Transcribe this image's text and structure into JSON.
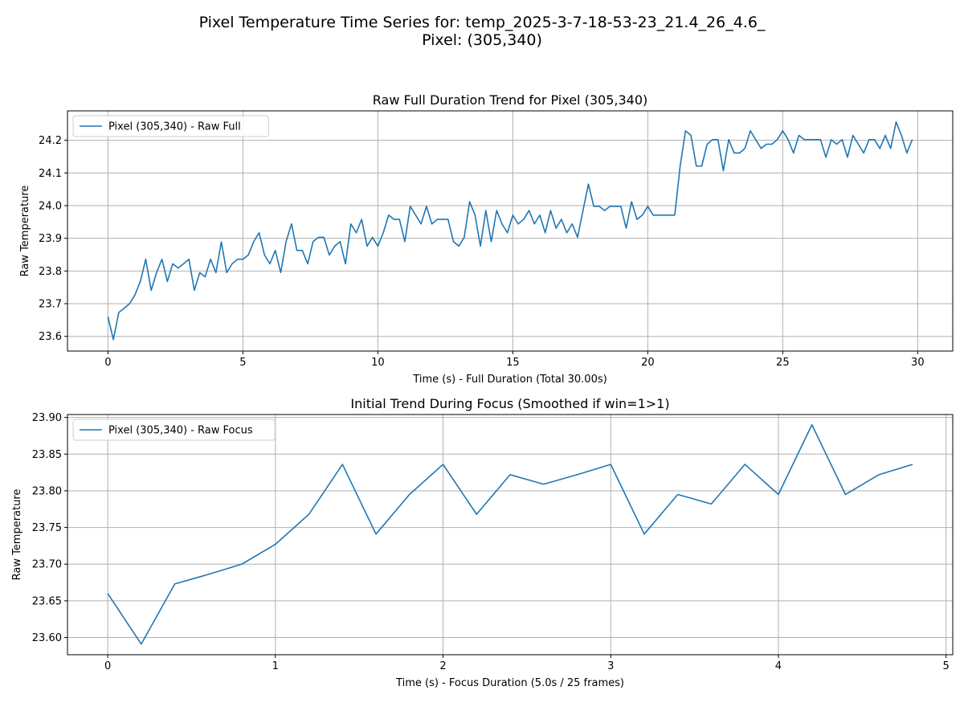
{
  "figure": {
    "suptitle_line1": "Pixel Temperature Time Series for: temp_2025-3-7-18-53-23_21.4_26_4.6_",
    "suptitle_line2": "Pixel: (305,340)"
  },
  "colors": {
    "series": "#1f77b4",
    "grid": "#b0b0b0"
  },
  "chart_data": [
    {
      "type": "line",
      "title": "Raw Full Duration Trend for Pixel (305,340)",
      "xlabel": "Time (s) - Full Duration (Total 30.00s)",
      "ylabel": "Raw Temperature",
      "xlim": [
        -1.5,
        31.3
      ],
      "ylim": [
        23.555,
        24.29
      ],
      "xticks": [
        0,
        5,
        10,
        15,
        20,
        25,
        30
      ],
      "xtick_labels": [
        "0",
        "5",
        "10",
        "15",
        "20",
        "25",
        "30"
      ],
      "yticks": [
        23.6,
        23.7,
        23.8,
        23.9,
        24.0,
        24.1,
        24.2
      ],
      "ytick_labels": [
        "23.6",
        "23.7",
        "23.8",
        "23.9",
        "24.0",
        "24.1",
        "24.2"
      ],
      "grid": true,
      "legend_position": "upper-left",
      "series": [
        {
          "name": "Pixel (305,340) - Raw Full",
          "x": [
            0.0,
            0.2,
            0.4,
            0.6,
            0.8,
            1.0,
            1.2,
            1.4,
            1.6,
            1.8,
            2.0,
            2.2,
            2.4,
            2.6,
            2.8,
            3.0,
            3.2,
            3.4,
            3.6,
            3.8,
            4.0,
            4.2,
            4.4,
            4.6,
            4.8,
            5.0,
            5.2,
            5.4,
            5.6,
            5.8,
            6.0,
            6.2,
            6.4,
            6.6,
            6.8,
            7.0,
            7.2,
            7.4,
            7.6,
            7.8,
            8.0,
            8.2,
            8.4,
            8.6,
            8.8,
            9.0,
            9.2,
            9.4,
            9.6,
            9.8,
            10.0,
            10.2,
            10.4,
            10.6,
            10.8,
            11.0,
            11.2,
            11.4,
            11.6,
            11.8,
            12.0,
            12.2,
            12.4,
            12.6,
            12.8,
            13.0,
            13.2,
            13.4,
            13.6,
            13.8,
            14.0,
            14.2,
            14.4,
            14.6,
            14.8,
            15.0,
            15.2,
            15.4,
            15.6,
            15.8,
            16.0,
            16.2,
            16.4,
            16.6,
            16.8,
            17.0,
            17.2,
            17.4,
            17.6,
            17.8,
            18.0,
            18.2,
            18.4,
            18.6,
            18.8,
            19.0,
            19.2,
            19.4,
            19.6,
            19.8,
            20.0,
            20.2,
            20.4,
            20.6,
            20.8,
            21.0,
            21.2,
            21.4,
            21.6,
            21.8,
            22.0,
            22.2,
            22.4,
            22.6,
            22.8,
            23.0,
            23.2,
            23.4,
            23.6,
            23.8,
            24.0,
            24.2,
            24.4,
            24.6,
            24.8,
            25.0,
            25.2,
            25.4,
            25.6,
            25.8,
            26.0,
            26.2,
            26.4,
            26.6,
            26.8,
            27.0,
            27.2,
            27.4,
            27.6,
            27.8,
            28.0,
            28.2,
            28.4,
            28.6,
            28.8,
            29.0,
            29.2,
            29.4,
            29.6,
            29.8
          ],
          "values": [
            23.66,
            23.59,
            23.673,
            23.686,
            23.7,
            23.727,
            23.768,
            23.836,
            23.741,
            23.795,
            23.836,
            23.768,
            23.822,
            23.809,
            23.822,
            23.836,
            23.741,
            23.795,
            23.782,
            23.836,
            23.795,
            23.889,
            23.795,
            23.822,
            23.836,
            23.836,
            23.849,
            23.89,
            23.917,
            23.849,
            23.822,
            23.863,
            23.795,
            23.89,
            23.944,
            23.863,
            23.863,
            23.822,
            23.89,
            23.903,
            23.903,
            23.849,
            23.876,
            23.89,
            23.822,
            23.944,
            23.917,
            23.958,
            23.876,
            23.903,
            23.876,
            23.917,
            23.971,
            23.958,
            23.958,
            23.89,
            23.998,
            23.971,
            23.944,
            23.998,
            23.944,
            23.958,
            23.958,
            23.958,
            23.89,
            23.876,
            23.903,
            24.012,
            23.971,
            23.876,
            23.985,
            23.89,
            23.985,
            23.944,
            23.917,
            23.971,
            23.944,
            23.958,
            23.985,
            23.944,
            23.971,
            23.917,
            23.985,
            23.931,
            23.958,
            23.917,
            23.944,
            23.903,
            23.985,
            24.066,
            23.998,
            23.998,
            23.985,
            23.998,
            23.998,
            23.998,
            23.931,
            24.012,
            23.958,
            23.971,
            23.998,
            23.971,
            23.971,
            23.971,
            23.971,
            23.971,
            24.121,
            24.229,
            24.215,
            24.121,
            24.121,
            24.188,
            24.202,
            24.202,
            24.107,
            24.202,
            24.161,
            24.161,
            24.175,
            24.229,
            24.202,
            24.175,
            24.188,
            24.188,
            24.202,
            24.229,
            24.202,
            24.161,
            24.215,
            24.202,
            24.202,
            24.202,
            24.202,
            24.148,
            24.202,
            24.188,
            24.202,
            24.148,
            24.215,
            24.188,
            24.161,
            24.202,
            24.202,
            24.175,
            24.215,
            24.175,
            24.256,
            24.215,
            24.161,
            24.202
          ]
        }
      ]
    },
    {
      "type": "line",
      "title": "Initial Trend During Focus (Smoothed if win=1>1)",
      "xlabel": "Time (s) - Focus Duration (5.0s / 25 frames)",
      "ylabel": "Raw Temperature",
      "xlim": [
        -0.24,
        5.04
      ],
      "ylim": [
        23.5765,
        23.904
      ],
      "xticks": [
        0,
        1,
        2,
        3,
        4,
        5
      ],
      "xtick_labels": [
        "0",
        "1",
        "2",
        "3",
        "4",
        "5"
      ],
      "yticks": [
        23.6,
        23.65,
        23.7,
        23.75,
        23.8,
        23.85,
        23.9
      ],
      "ytick_labels": [
        "23.60",
        "23.65",
        "23.70",
        "23.75",
        "23.80",
        "23.85",
        "23.90"
      ],
      "grid": true,
      "legend_position": "upper-left",
      "series": [
        {
          "name": "Pixel (305,340) - Raw Focus",
          "x": [
            0.0,
            0.2,
            0.4,
            0.6,
            0.8,
            1.0,
            1.2,
            1.4,
            1.6,
            1.8,
            2.0,
            2.2,
            2.4,
            2.6,
            2.8,
            3.0,
            3.2,
            3.4,
            3.6,
            3.8,
            4.0,
            4.2,
            4.4,
            4.6,
            4.8
          ],
          "values": [
            23.66,
            23.591,
            23.673,
            23.686,
            23.7,
            23.727,
            23.768,
            23.836,
            23.741,
            23.795,
            23.836,
            23.768,
            23.822,
            23.809,
            23.822,
            23.836,
            23.741,
            23.795,
            23.782,
            23.836,
            23.795,
            23.89,
            23.795,
            23.822,
            23.836
          ]
        }
      ]
    }
  ]
}
